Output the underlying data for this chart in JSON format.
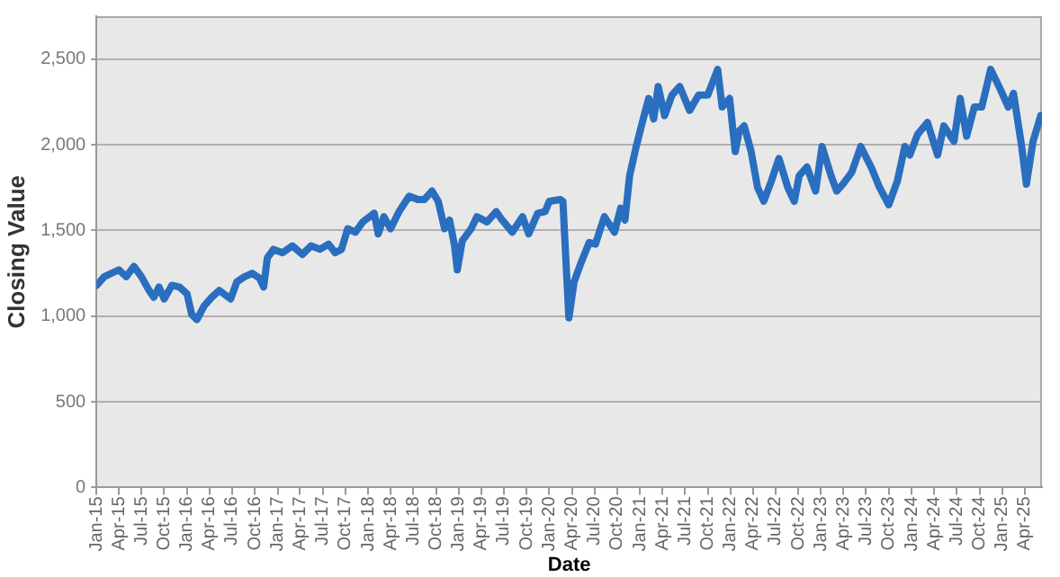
{
  "chart_data": {
    "type": "line",
    "xlabel": "Date",
    "ylabel": "Closing Value",
    "x": [
      "2015-01-02",
      "2015-02-01",
      "2015-04-01",
      "2015-05-01",
      "2015-06-01",
      "2015-07-01",
      "2015-08-01",
      "2015-08-20",
      "2015-09-10",
      "2015-10-01",
      "2015-11-01",
      "2015-12-01",
      "2016-01-01",
      "2016-01-20",
      "2016-02-10",
      "2016-03-10",
      "2016-04-10",
      "2016-05-10",
      "2016-06-25",
      "2016-07-20",
      "2016-08-20",
      "2016-09-20",
      "2016-10-20",
      "2016-11-05",
      "2016-11-20",
      "2016-12-15",
      "2017-01-20",
      "2017-03-01",
      "2017-04-10",
      "2017-05-15",
      "2017-06-20",
      "2017-07-25",
      "2017-08-20",
      "2017-09-15",
      "2017-10-10",
      "2017-11-10",
      "2017-12-10",
      "2018-01-25",
      "2018-02-10",
      "2018-03-05",
      "2018-04-01",
      "2018-05-05",
      "2018-06-15",
      "2018-07-20",
      "2018-08-15",
      "2018-09-15",
      "2018-10-10",
      "2018-11-05",
      "2018-11-25",
      "2018-12-15",
      "2018-12-26",
      "2019-01-15",
      "2019-02-20",
      "2019-03-15",
      "2019-04-25",
      "2019-06-01",
      "2019-06-25",
      "2019-08-05",
      "2019-09-15",
      "2019-10-10",
      "2019-11-15",
      "2019-12-15",
      "2020-01-01",
      "2020-02-15",
      "2020-02-25",
      "2020-03-05",
      "2020-03-20",
      "2020-04-10",
      "2020-05-05",
      "2020-06-10",
      "2020-07-05",
      "2020-08-10",
      "2020-09-20",
      "2020-10-15",
      "2020-11-01",
      "2020-11-20",
      "2020-12-15",
      "2021-01-10",
      "2021-02-05",
      "2021-02-25",
      "2021-03-15",
      "2021-04-10",
      "2021-05-10",
      "2021-06-10",
      "2021-07-20",
      "2021-08-25",
      "2021-10-01",
      "2021-11-10",
      "2021-11-28",
      "2021-12-28",
      "2022-01-20",
      "2022-02-05",
      "2022-02-25",
      "2022-03-25",
      "2022-04-20",
      "2022-05-15",
      "2022-06-15",
      "2022-07-15",
      "2022-08-20",
      "2022-09-15",
      "2022-10-05",
      "2022-11-05",
      "2022-12-10",
      "2023-01-05",
      "2023-02-10",
      "2023-03-05",
      "2023-03-30",
      "2023-05-05",
      "2023-06-10",
      "2023-07-25",
      "2023-08-25",
      "2023-10-01",
      "2023-11-05",
      "2023-12-05",
      "2023-12-25",
      "2024-01-25",
      "2024-03-05",
      "2024-04-15",
      "2024-05-10",
      "2024-06-20",
      "2024-07-15",
      "2024-08-10",
      "2024-09-10",
      "2024-10-10",
      "2024-11-15",
      "2024-12-25",
      "2025-01-25",
      "2025-02-15",
      "2025-03-20",
      "2025-04-08",
      "2025-05-05",
      "2025-06-05"
    ],
    "series": [
      {
        "color": "#2a6ebf",
        "values": [
          1180,
          1230,
          1270,
          1230,
          1290,
          1230,
          1150,
          1110,
          1170,
          1100,
          1180,
          1170,
          1130,
          1010,
          980,
          1060,
          1110,
          1150,
          1100,
          1200,
          1230,
          1250,
          1220,
          1170,
          1340,
          1390,
          1370,
          1410,
          1360,
          1410,
          1390,
          1420,
          1370,
          1390,
          1510,
          1490,
          1550,
          1600,
          1480,
          1580,
          1510,
          1610,
          1700,
          1680,
          1680,
          1730,
          1670,
          1510,
          1560,
          1410,
          1270,
          1440,
          1510,
          1580,
          1550,
          1610,
          1560,
          1490,
          1580,
          1480,
          1600,
          1610,
          1670,
          1680,
          1670,
          1410,
          990,
          1200,
          1300,
          1430,
          1420,
          1580,
          1490,
          1630,
          1560,
          1820,
          1980,
          2130,
          2270,
          2150,
          2340,
          2170,
          2290,
          2340,
          2200,
          2290,
          2290,
          2440,
          2220,
          2270,
          1960,
          2080,
          2110,
          1960,
          1750,
          1670,
          1790,
          1920,
          1750,
          1670,
          1820,
          1870,
          1730,
          1990,
          1820,
          1730,
          1770,
          1840,
          1990,
          1860,
          1750,
          1650,
          1790,
          1990,
          1940,
          2060,
          2130,
          1940,
          2110,
          2020,
          2270,
          2050,
          2220,
          2220,
          2440,
          2320,
          2220,
          2300,
          1990,
          1770,
          2020,
          2170
        ]
      }
    ],
    "xlim": [
      "2015-01-01",
      "2025-06-10"
    ],
    "xticks": [
      {
        "value": "2015-01-01",
        "label": "Jan-15"
      },
      {
        "value": "2015-04-01",
        "label": "Apr-15"
      },
      {
        "value": "2015-07-01",
        "label": "Jul-15"
      },
      {
        "value": "2015-10-01",
        "label": "Oct-15"
      },
      {
        "value": "2016-01-01",
        "label": "Jan-16"
      },
      {
        "value": "2016-04-01",
        "label": "Apr-16"
      },
      {
        "value": "2016-07-01",
        "label": "Jul-16"
      },
      {
        "value": "2016-10-01",
        "label": "Oct-16"
      },
      {
        "value": "2017-01-01",
        "label": "Jan-17"
      },
      {
        "value": "2017-04-01",
        "label": "Apr-17"
      },
      {
        "value": "2017-07-01",
        "label": "Jul-17"
      },
      {
        "value": "2017-10-01",
        "label": "Oct-17"
      },
      {
        "value": "2018-01-01",
        "label": "Jan-18"
      },
      {
        "value": "2018-04-01",
        "label": "Apr-18"
      },
      {
        "value": "2018-07-01",
        "label": "Jul-18"
      },
      {
        "value": "2018-10-01",
        "label": "Oct-18"
      },
      {
        "value": "2019-01-01",
        "label": "Jan-19"
      },
      {
        "value": "2019-04-01",
        "label": "Apr-19"
      },
      {
        "value": "2019-07-01",
        "label": "Jul-19"
      },
      {
        "value": "2019-10-01",
        "label": "Oct-19"
      },
      {
        "value": "2020-01-01",
        "label": "Jan-20"
      },
      {
        "value": "2020-04-01",
        "label": "Apr-20"
      },
      {
        "value": "2020-07-01",
        "label": "Jul-20"
      },
      {
        "value": "2020-10-01",
        "label": "Oct-20"
      },
      {
        "value": "2021-01-01",
        "label": "Jan-21"
      },
      {
        "value": "2021-04-01",
        "label": "Apr-21"
      },
      {
        "value": "2021-07-01",
        "label": "Jul-21"
      },
      {
        "value": "2021-10-01",
        "label": "Oct-21"
      },
      {
        "value": "2022-01-01",
        "label": "Jan-22"
      },
      {
        "value": "2022-04-01",
        "label": "Apr-22"
      },
      {
        "value": "2022-07-01",
        "label": "Jul-22"
      },
      {
        "value": "2022-10-01",
        "label": "Oct-22"
      },
      {
        "value": "2023-01-01",
        "label": "Jan-23"
      },
      {
        "value": "2023-04-01",
        "label": "Apr-23"
      },
      {
        "value": "2023-07-01",
        "label": "Jul-23"
      },
      {
        "value": "2023-10-01",
        "label": "Oct-23"
      },
      {
        "value": "2024-01-01",
        "label": "Jan-24"
      },
      {
        "value": "2024-04-01",
        "label": "Apr-24"
      },
      {
        "value": "2024-07-01",
        "label": "Jul-24"
      },
      {
        "value": "2024-10-01",
        "label": "Oct-24"
      },
      {
        "value": "2025-01-01",
        "label": "Jan-25"
      },
      {
        "value": "2025-04-01",
        "label": "Apr-25"
      }
    ],
    "ylim": [
      0,
      2750
    ],
    "yticks": [
      {
        "value": 0,
        "label": "0"
      },
      {
        "value": 500,
        "label": "500"
      },
      {
        "value": 1000,
        "label": "1,000"
      },
      {
        "value": 1500,
        "label": "1,500"
      },
      {
        "value": 2000,
        "label": "2,000"
      },
      {
        "value": 2500,
        "label": "2,500"
      }
    ],
    "grid": "y",
    "legend": false,
    "marker": "none",
    "line_style": "solid"
  }
}
